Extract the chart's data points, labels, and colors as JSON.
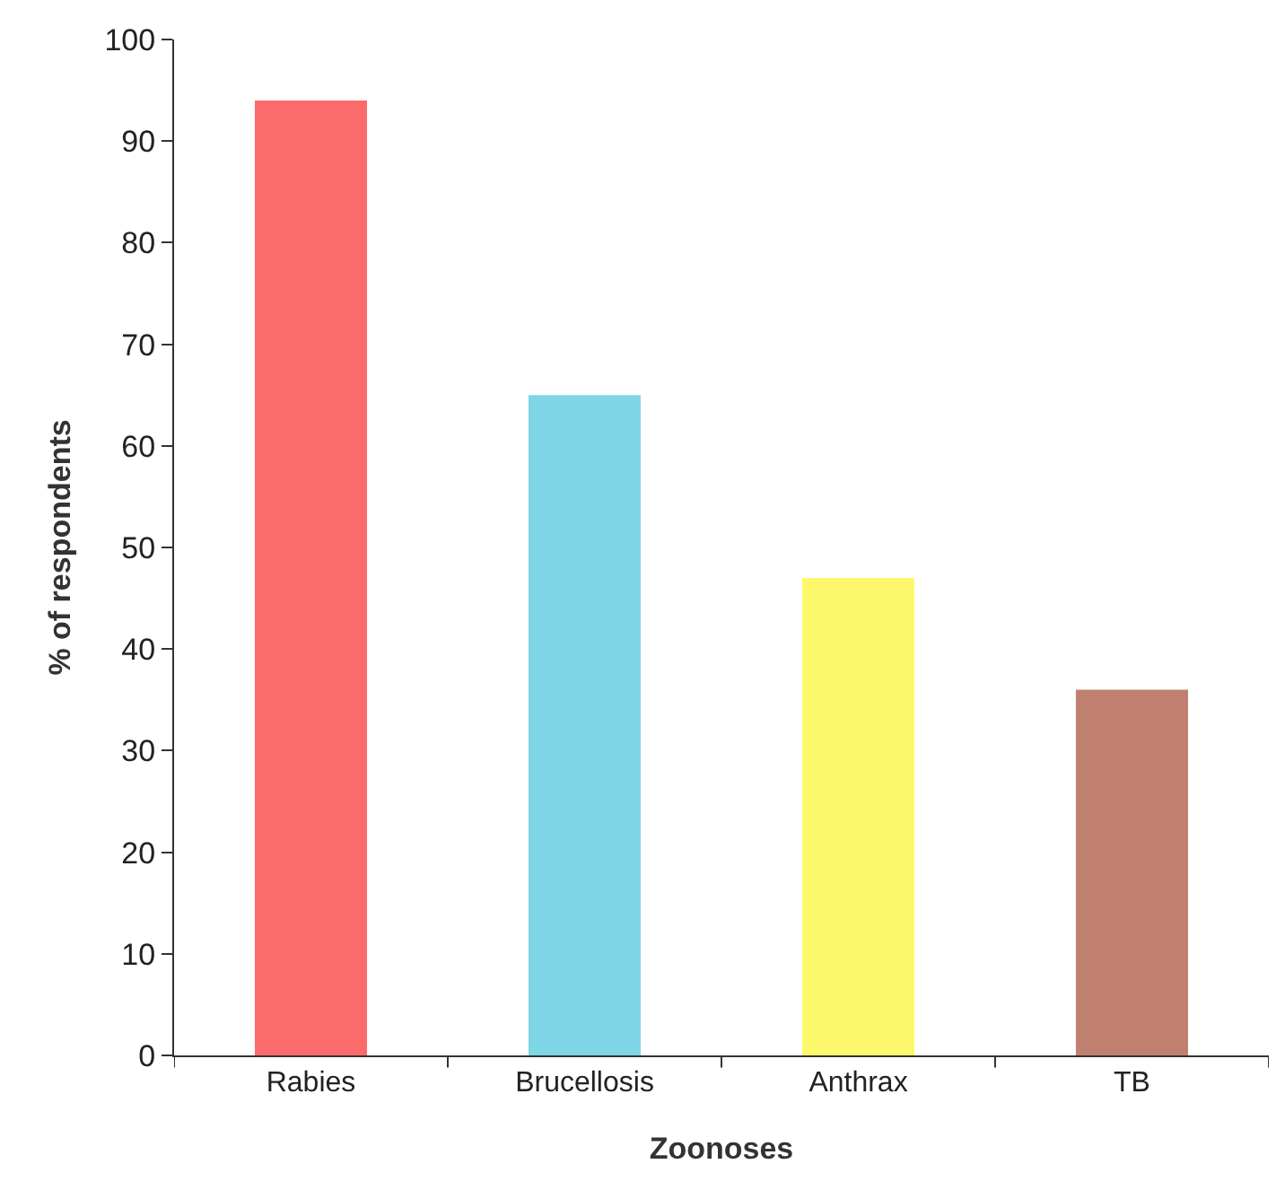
{
  "chart_data": {
    "type": "bar",
    "xlabel": "Zoonoses",
    "ylabel": "% of respondents",
    "categories": [
      "Rabies",
      "Brucellosis",
      "Anthrax",
      "TB"
    ],
    "values": [
      94,
      65,
      47,
      36
    ],
    "colors": [
      "#fb6b6b",
      "#7fd6e6",
      "#fdf86b",
      "#c08070"
    ],
    "ylim": [
      0,
      100
    ],
    "yticks": [
      0,
      10,
      20,
      30,
      40,
      50,
      60,
      70,
      80,
      90,
      100
    ],
    "grid": false,
    "legend": false
  }
}
